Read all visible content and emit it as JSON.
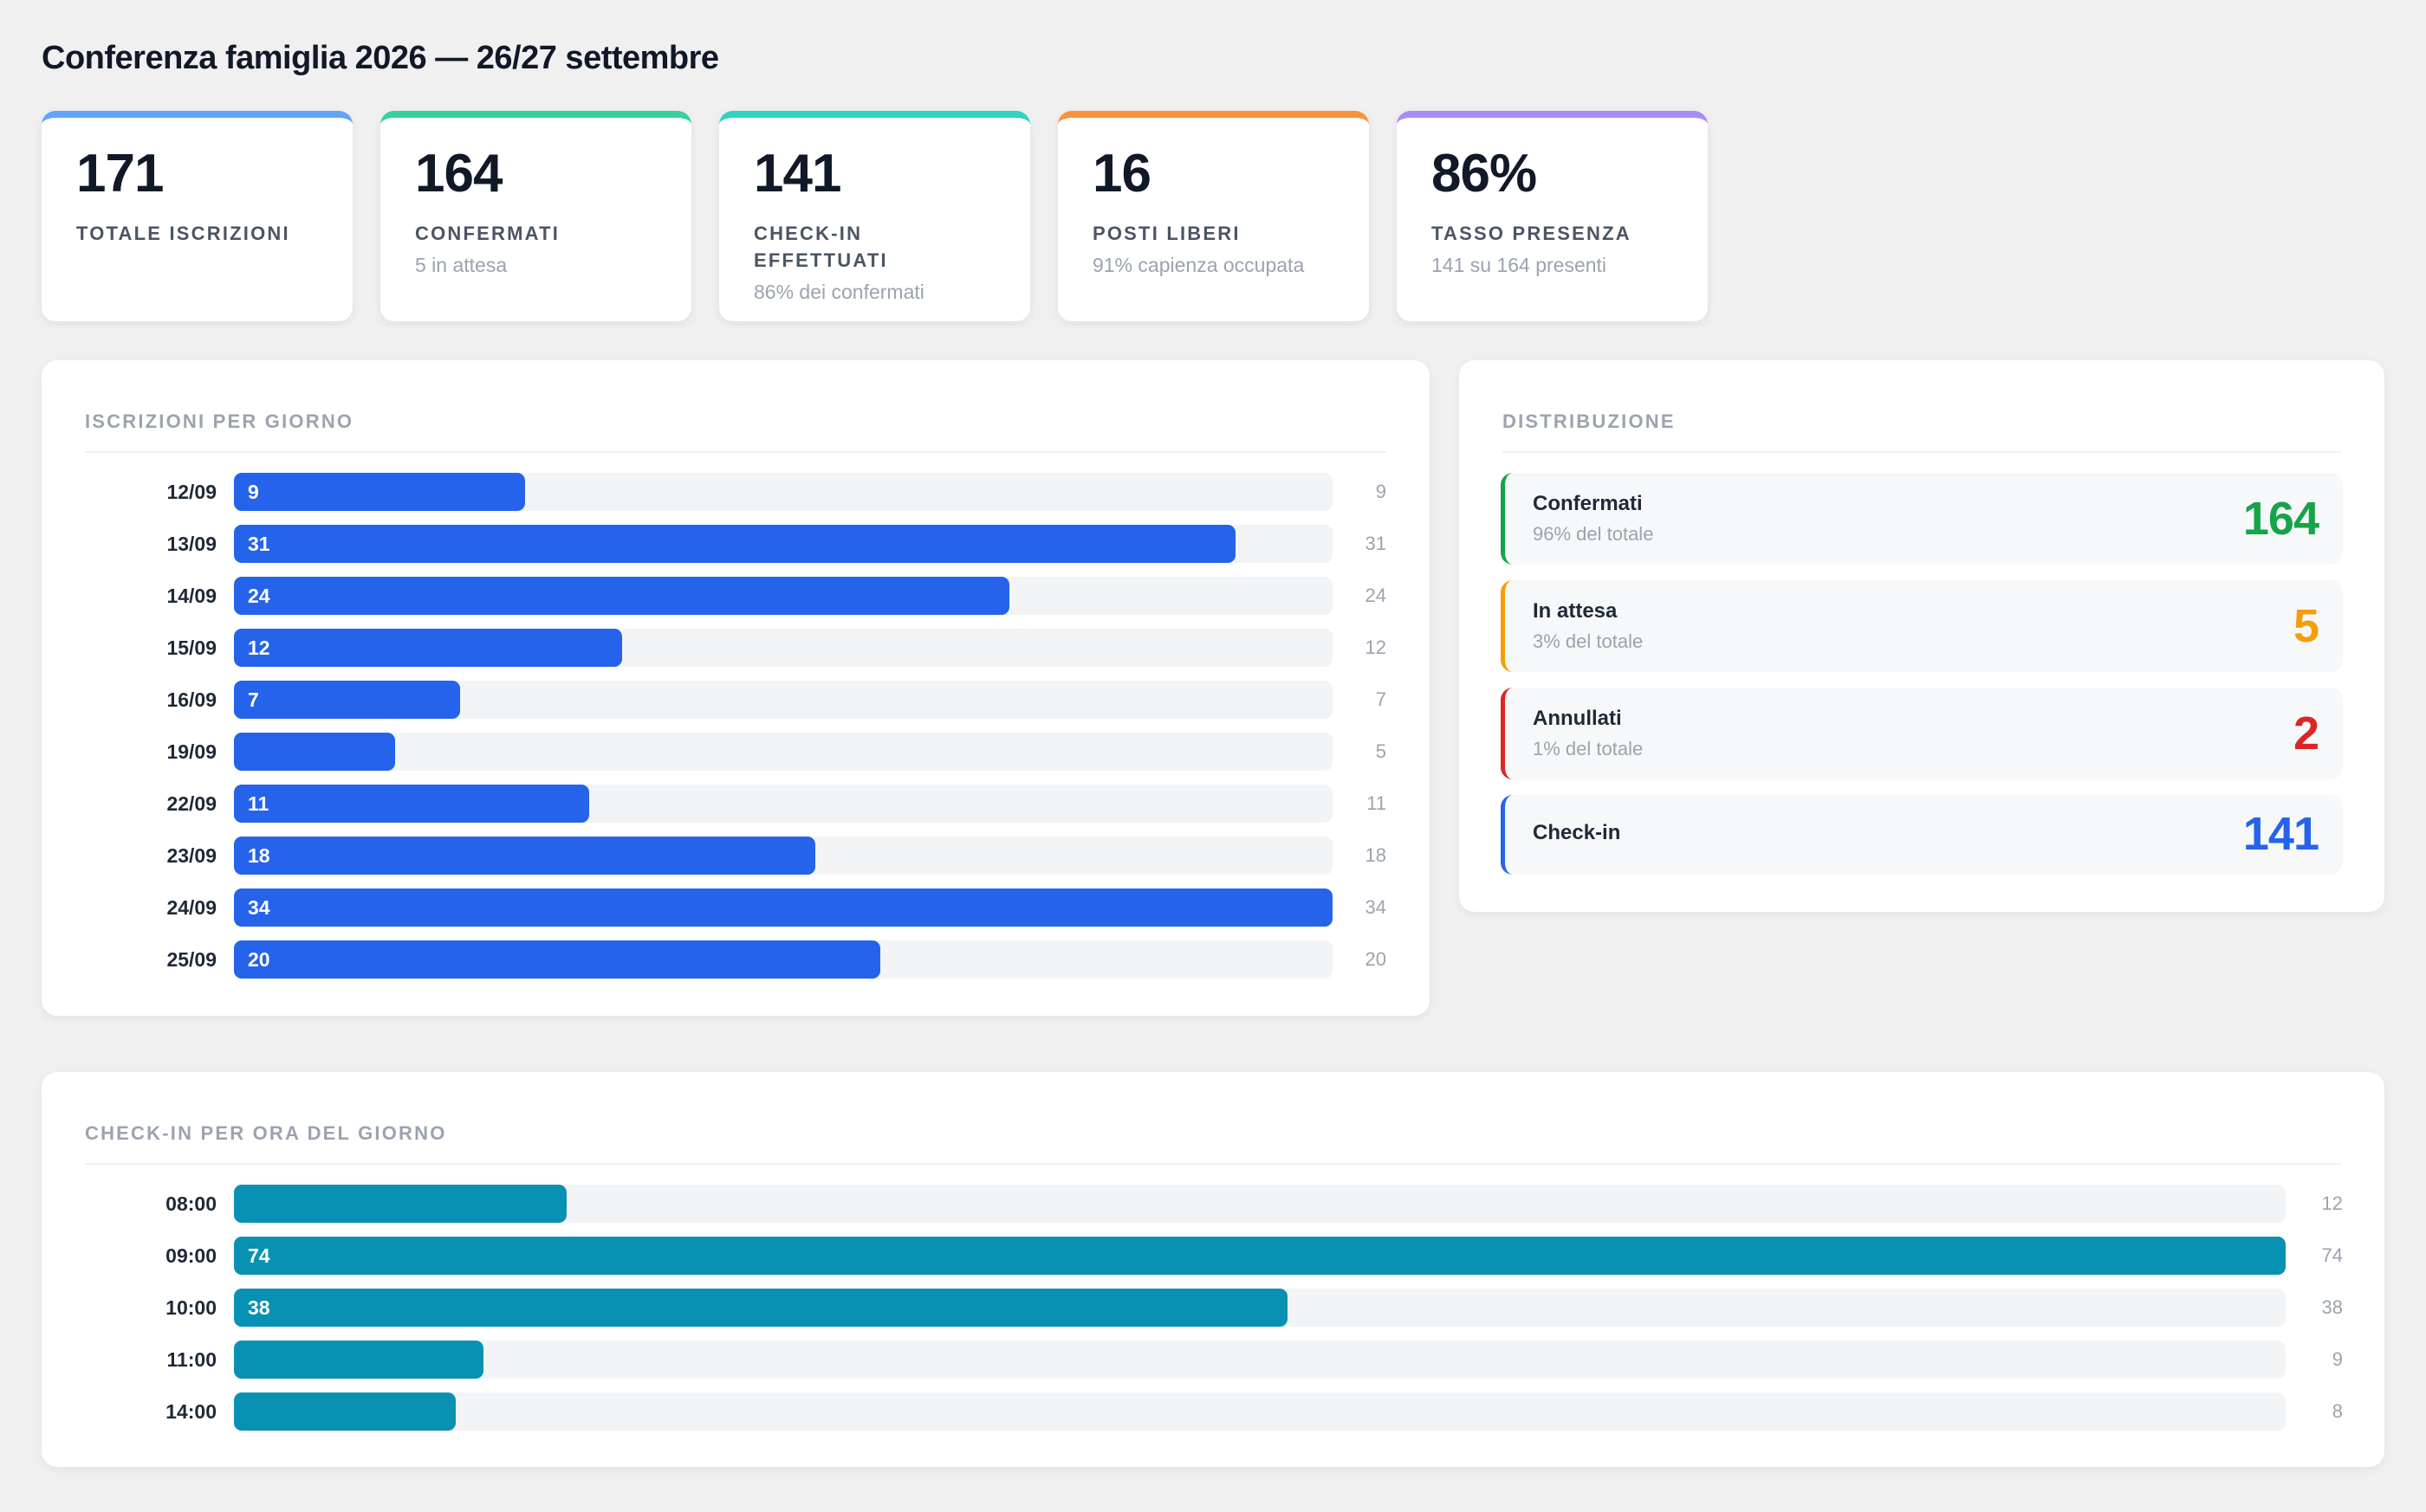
{
  "title": "Conferenza famiglia 2026 — 26/27 settembre",
  "kpis": [
    {
      "value": "171",
      "label": "TOTALE ISCRIZIONI",
      "sub": "",
      "accent": "#60a5fa"
    },
    {
      "value": "164",
      "label": "CONFERMATI",
      "sub": "5 in attesa",
      "accent": "#34d399"
    },
    {
      "value": "141",
      "label": "CHECK-IN EFFETTUATI",
      "sub": "86% dei confermati",
      "accent": "#2dd4bf"
    },
    {
      "value": "16",
      "label": "POSTI LIBERI",
      "sub": "91% capienza occupata",
      "accent": "#fb923c"
    },
    {
      "value": "86%",
      "label": "TASSO PRESENZA",
      "sub": "141 su 164 presenti",
      "accent": "#a78bfa"
    }
  ],
  "daily": {
    "title": "ISCRIZIONI PER GIORNO",
    "bar_color": "#2563eb",
    "max": 34
  },
  "distribution": {
    "title": "DISTRIBUZIONE",
    "items": [
      {
        "name": "Confermati",
        "sub": "96% del totale",
        "value": "164",
        "accent": "#16a34a"
      },
      {
        "name": "In attesa",
        "sub": "3% del totale",
        "value": "5",
        "accent": "#f59e0b"
      },
      {
        "name": "Annullati",
        "sub": "1% del totale",
        "value": "2",
        "accent": "#dc2626"
      },
      {
        "name": "Check-in",
        "sub": "",
        "value": "141",
        "accent": "#2563eb"
      }
    ]
  },
  "hourly": {
    "title": "CHECK-IN PER ORA DEL GIORNO",
    "bar_color": "#0891b2",
    "max": 74
  },
  "chart_data": [
    {
      "type": "bar",
      "title": "ISCRIZIONI PER GIORNO",
      "categories": [
        "12/09",
        "13/09",
        "14/09",
        "15/09",
        "16/09",
        "19/09",
        "22/09",
        "23/09",
        "24/09",
        "25/09"
      ],
      "values": [
        9,
        31,
        24,
        12,
        7,
        5,
        11,
        18,
        34,
        20
      ],
      "inner_labels": [
        "9",
        "31",
        "24",
        "12",
        "7",
        "",
        "11",
        "18",
        "34",
        "20"
      ]
    },
    {
      "type": "bar",
      "title": "CHECK-IN PER ORA DEL GIORNO",
      "categories": [
        "08:00",
        "09:00",
        "10:00",
        "11:00",
        "14:00"
      ],
      "values": [
        12,
        74,
        38,
        9,
        8
      ],
      "inner_labels": [
        "",
        "74",
        "38",
        "",
        ""
      ]
    }
  ]
}
